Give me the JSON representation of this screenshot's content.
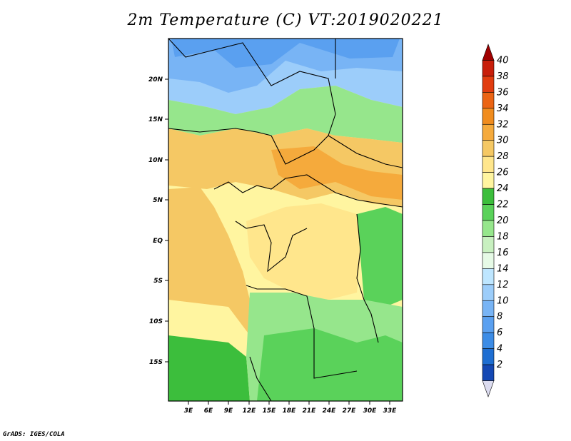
{
  "title": "2m Temperature (C) VT:2019020221",
  "footer": "GrADS: IGES/COLA",
  "map": {
    "lon_range": [
      0,
      34
    ],
    "lat_range": [
      -20,
      25
    ],
    "x_ticks": [
      "3E",
      "6E",
      "9E",
      "12E",
      "15E",
      "18E",
      "21E",
      "24E",
      "27E",
      "30E",
      "33E"
    ],
    "y_ticks": [
      "20N",
      "15N",
      "10N",
      "5N",
      "EQ",
      "5S",
      "10S",
      "15S"
    ]
  },
  "colorbar": {
    "levels": [
      "2",
      "4",
      "6",
      "8",
      "10",
      "12",
      "14",
      "16",
      "18",
      "20",
      "22",
      "24",
      "26",
      "28",
      "30",
      "32",
      "34",
      "36",
      "38",
      "40"
    ],
    "colors": [
      "#0b0b6e",
      "#1448b4",
      "#1e6ed2",
      "#3c8ce6",
      "#5aa0f0",
      "#78b4f5",
      "#9ccdfa",
      "#bee6ff",
      "#e6fae6",
      "#c8f0c0",
      "#96e68c",
      "#5ad25a",
      "#3cbe3c",
      "#fff5a0",
      "#ffe68c",
      "#f5c864",
      "#f5aa3c",
      "#f08c1e",
      "#eb6414",
      "#e13c0f",
      "#c81e0a",
      "#a00000"
    ]
  }
}
